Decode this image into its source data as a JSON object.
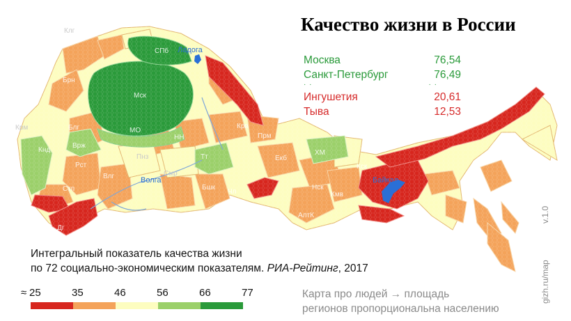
{
  "title": "Качество жизни в России",
  "top": [
    {
      "name": "Москва",
      "value": "76,54"
    },
    {
      "name": "Санкт-Петербург",
      "value": "76,49"
    }
  ],
  "bottom": [
    {
      "name": "Ингушетия",
      "value": "20,61"
    },
    {
      "name": "Тыва",
      "value": "12,53"
    }
  ],
  "subtitle": {
    "line1": "Интегральный показатель качества жизни",
    "line2_plain": "по 72 социально-экономическим  показателям. ",
    "line2_italic": "РИА-Рейтинг",
    "line2_year": ", 2017"
  },
  "legend": {
    "approx": "≈",
    "ticks": [
      "25",
      "35",
      "46",
      "56",
      "66",
      "77"
    ],
    "colors": [
      "#d7261e",
      "#f4a35a",
      "#fdfdc0",
      "#9bd06a",
      "#2a9a3a"
    ]
  },
  "note": {
    "line1": "Карта про людей → площадь",
    "line2": "регионов пропорциональна населению"
  },
  "credit": "gizh.ru/map",
  "version": "v.1.0",
  "map_labels": {
    "klg": "Клг",
    "spb": "СПб",
    "ladoga": "Ладога",
    "brn": "Брн",
    "msk": "Мск",
    "mo": "МО",
    "krm": "Крм",
    "bl": "Блг",
    "vrzh": "Врж",
    "knd": "Кнд",
    "rst": "Рст",
    "vlg": "Влг",
    "stv": "Стп",
    "dag": "Дг",
    "pnz": "Пнз",
    "smr": "Смр",
    "volga": "Волга",
    "nn": "НН",
    "tatr": "Тт",
    "bsh": "Бшк",
    "chl": "Чл",
    "krv": "Крв",
    "prm": "Прм",
    "ekb": "Екб",
    "hm": "ХМ",
    "ksk": "Кск",
    "nsk": "Нск",
    "kmv": "Кмв",
    "alt": "АлтК",
    "baikal": "Байкал"
  }
}
